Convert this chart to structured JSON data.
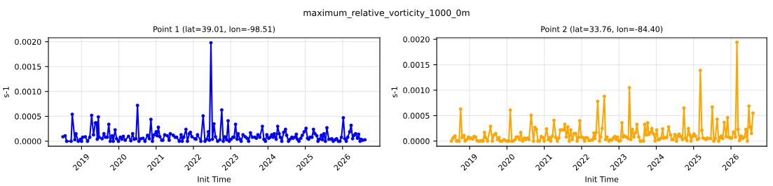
{
  "chart_data": [
    {
      "type": "line",
      "title": "Point 1 (lat=39.01, lon=-98.51)",
      "xlabel": "Init Time",
      "ylabel": "s-1",
      "grid": true,
      "marker": "circle",
      "line_style": "solid",
      "xlim": [
        2018.11,
        2027.0
      ],
      "xticks": [
        2019,
        2020,
        2021,
        2022,
        2023,
        2024,
        2025,
        2026
      ],
      "ylim": [
        -0.0001,
        0.00208
      ],
      "yticks": [
        {
          "value": 0,
          "label": "0.0000"
        },
        {
          "value": 0.0005,
          "label": "0.0005"
        },
        {
          "value": 0.001,
          "label": "0.0010"
        },
        {
          "value": 0.0015,
          "label": "0.0015"
        },
        {
          "value": 0.002,
          "label": "0.0020"
        }
      ],
      "series": [
        {
          "color": "#0000ff",
          "x": [
            2018.5,
            2018.56,
            2018.6,
            2018.72,
            2018.75,
            2018.82,
            2018.85,
            2018.91,
            2018.97,
            2019.0,
            2019.03,
            2019.1,
            2019.16,
            2019.22,
            2019.27,
            2019.32,
            2019.37,
            2019.4,
            2019.42,
            2019.45,
            2019.47,
            2019.55,
            2019.6,
            2019.64,
            2019.69,
            2019.73,
            2019.77,
            2019.82,
            2019.85,
            2019.9,
            2019.94,
            2019.99,
            2020.04,
            2020.08,
            2020.12,
            2020.17,
            2020.26,
            2020.32,
            2020.37,
            2020.41,
            2020.46,
            2020.5,
            2020.54,
            2020.59,
            2020.65,
            2020.7,
            2020.77,
            2020.82,
            2020.86,
            2020.9,
            2020.95,
            2021.0,
            2021.03,
            2021.06,
            2021.1,
            2021.15,
            2021.18,
            2021.23,
            2021.3,
            2021.35,
            2021.38,
            2021.46,
            2021.51,
            2021.55,
            2021.62,
            2021.67,
            2021.7,
            2021.74,
            2021.8,
            2021.84,
            2021.89,
            2021.92,
            2021.96,
            2022.04,
            2022.07,
            2022.11,
            2022.2,
            2022.26,
            2022.31,
            2022.36,
            2022.4,
            2022.43,
            2022.47,
            2022.51,
            2022.55,
            2022.59,
            2022.65,
            2022.71,
            2022.76,
            2022.8,
            2022.84,
            2022.89,
            2022.93,
            2022.96,
            2023.01,
            2023.06,
            2023.09,
            2023.13,
            2023.17,
            2023.2,
            2023.25,
            2023.28,
            2023.33,
            2023.39,
            2023.44,
            2023.48,
            2023.53,
            2023.58,
            2023.65,
            2023.69,
            2023.73,
            2023.78,
            2023.85,
            2023.89,
            2023.93,
            2023.97,
            2024.02,
            2024.06,
            2024.1,
            2024.14,
            2024.17,
            2024.22,
            2024.26,
            2024.3,
            2024.33,
            2024.37,
            2024.42,
            2024.47,
            2024.5,
            2024.55,
            2024.59,
            2024.64,
            2024.67,
            2024.72,
            2024.76,
            2024.79,
            2024.83,
            2024.88,
            2024.92,
            2024.97,
            2025.02,
            2025.06,
            2025.09,
            2025.13,
            2025.18,
            2025.22,
            2025.26,
            2025.31,
            2025.34,
            2025.38,
            2025.43,
            2025.46,
            2025.5,
            2025.54,
            2025.58,
            2025.63,
            2025.67,
            2025.71,
            2025.75,
            2025.8,
            2025.84,
            2025.89,
            2025.93,
            2025.97,
            2026.02,
            2026.06,
            2026.1,
            2026.14,
            2026.19,
            2026.23,
            2026.27,
            2026.31,
            2026.35,
            2026.4,
            2026.43,
            2026.47,
            2026.5,
            2026.54,
            2026.6
          ],
          "values": [
            9e-05,
            0.00011,
            0,
            0,
            0.00054,
            3e-05,
            0.00015,
            0,
            4e-05,
            0,
            8e-05,
            9e-05,
            0,
            8e-05,
            0.00052,
            0.00013,
            0.00037,
            0.00037,
            4e-05,
            0.00049,
            8e-05,
            5e-05,
            0.00015,
            8e-05,
            8e-05,
            0.00034,
            0,
            0.00011,
            0,
            0.00023,
            5e-05,
            0,
            8e-05,
            4e-05,
            0.0001,
            2e-05,
            0.0001,
            1e-05,
            0.00015,
            4e-05,
            5e-05,
            0.00072,
            0,
            5e-05,
            6e-05,
            0,
            0.00012,
            5e-05,
            0.00044,
            0,
            0.00013,
            0.00019,
            0.00011,
            0.00028,
            9e-05,
            2e-05,
            2e-05,
            0.00013,
            0.00011,
            2e-05,
            0.00015,
            0.00012,
            8e-05,
            8e-05,
            0,
            0.00013,
            0,
            8e-05,
            0.00024,
            0,
            0.00015,
            0.00018,
            9e-05,
            5e-05,
            4e-05,
            0.00013,
            0,
            0.00051,
            0,
            4e-05,
            0.00019,
            2e-05,
            0.00198,
            4e-05,
            0.00035,
            9e-05,
            0,
            3e-05,
            0.00063,
            0,
            9e-05,
            3e-05,
            0.00041,
            0,
            4e-05,
            8e-05,
            8e-05,
            0.00034,
            4e-05,
            0.00015,
            4e-05,
            0,
            0.00013,
            9e-05,
            6e-05,
            0,
            0.00017,
            8e-05,
            8e-05,
            6e-05,
            0.00013,
            8e-05,
            0.0003,
            4e-05,
            0,
            0.00013,
            6e-05,
            8e-05,
            0.00013,
            8e-05,
            0.00015,
            4e-05,
            0.0003,
            0.00015,
            8e-05,
            0,
            0.00018,
            0.00024,
            0.00012,
            0,
            4e-05,
            8e-05,
            6e-05,
            8e-05,
            0.00014,
            4e-05,
            0,
            6e-05,
            0.00012,
            0.00019,
            0.00026,
            6e-05,
            4e-05,
            8e-05,
            8e-05,
            0.00024,
            0.00015,
            0.00011,
            0,
            4e-05,
            0.00012,
            3e-05,
            0.00015,
            0,
            0.00027,
            4e-05,
            4e-05,
            5e-05,
            0,
            3e-05,
            5e-05,
            0,
            0,
            8e-05,
            0.00047,
            5e-05,
            0,
            8e-05,
            0.00019,
            0.00032,
            5e-05,
            0.00012,
            0.00015,
            6e-05,
            0.00014,
            0,
            4e-05,
            2e-05,
            3e-05
          ]
        }
      ]
    },
    {
      "type": "line",
      "title": "Point 2 (lat=33.76, lon=-84.40)",
      "xlabel": "Init Time",
      "ylabel": "s-1",
      "grid": true,
      "marker": "circle",
      "line_style": "solid",
      "xlim": [
        2018.12,
        2026.96
      ],
      "xticks": [
        2019,
        2020,
        2021,
        2022,
        2023,
        2024,
        2025,
        2026
      ],
      "ylim": [
        -0.0001,
        0.00203
      ],
      "yticks": [
        {
          "value": 0,
          "label": "0.0000"
        },
        {
          "value": 0.0005,
          "label": "0.0005"
        },
        {
          "value": 0.001,
          "label": "0.0010"
        },
        {
          "value": 0.0015,
          "label": "0.0015"
        },
        {
          "value": 0.002,
          "label": "0.0020"
        }
      ],
      "series": [
        {
          "color": "#ffa500",
          "x": [
            2018.51,
            2018.55,
            2018.58,
            2018.61,
            2018.65,
            2018.68,
            2018.72,
            2018.76,
            2018.8,
            2018.85,
            2018.88,
            2018.92,
            2018.97,
            2019.0,
            2019.04,
            2019.08,
            2019.12,
            2019.16,
            2019.2,
            2019.23,
            2019.28,
            2019.32,
            2019.36,
            2019.4,
            2019.43,
            2019.48,
            2019.56,
            2019.61,
            2019.65,
            2019.7,
            2019.75,
            2019.79,
            2019.82,
            2019.87,
            2019.92,
            2019.96,
            2020.01,
            2020.05,
            2020.09,
            2020.13,
            2020.17,
            2020.22,
            2020.25,
            2020.29,
            2020.34,
            2020.37,
            2020.42,
            2020.47,
            2020.5,
            2020.55,
            2020.59,
            2020.65,
            2020.71,
            2020.75,
            2020.79,
            2020.83,
            2020.87,
            2020.92,
            2020.96,
            2021.0,
            2021.06,
            2021.11,
            2021.14,
            2021.17,
            2021.22,
            2021.26,
            2021.31,
            2021.35,
            2021.39,
            2021.43,
            2021.47,
            2021.52,
            2021.55,
            2021.59,
            2021.63,
            2021.67,
            2021.71,
            2021.75,
            2021.8,
            2021.84,
            2021.88,
            2021.91,
            2021.95,
            2021.99,
            2022.04,
            2022.08,
            2022.12,
            2022.16,
            2022.2,
            2022.25,
            2022.29,
            2022.33,
            2022.36,
            2022.39,
            2022.43,
            2022.48,
            2022.51,
            2022.55,
            2022.61,
            2022.64,
            2022.68,
            2022.73,
            2022.77,
            2022.81,
            2022.85,
            2022.89,
            2022.93,
            2022.96,
            2023.0,
            2023.04,
            2023.08,
            2023.11,
            2023.15,
            2023.2,
            2023.25,
            2023.28,
            2023.32,
            2023.36,
            2023.4,
            2023.45,
            2023.48,
            2023.53,
            2023.57,
            2023.61,
            2023.66,
            2023.69,
            2023.73,
            2023.77,
            2023.8,
            2023.85,
            2023.88,
            2023.93,
            2023.97,
            2024.01,
            2024.05,
            2024.08,
            2024.13,
            2024.17,
            2024.2,
            2024.24,
            2024.28,
            2024.33,
            2024.38,
            2024.42,
            2024.45,
            2024.5,
            2024.54,
            2024.58,
            2024.61,
            2024.65,
            2024.7,
            2024.74,
            2024.78,
            2024.82,
            2024.86,
            2024.9,
            2024.93,
            2024.97,
            2025.01,
            2025.05,
            2025.1,
            2025.14,
            2025.18,
            2025.22,
            2025.25,
            2025.29,
            2025.33,
            2025.37,
            2025.4,
            2025.46,
            2025.5,
            2025.54,
            2025.58,
            2025.63,
            2025.67,
            2025.71,
            2025.74,
            2025.78,
            2025.82,
            2025.87,
            2025.91,
            2025.94,
            2025.98,
            2026.02,
            2026.07,
            2026.12,
            2026.16,
            2026.19,
            2026.23,
            2026.27,
            2026.31,
            2026.36,
            2026.4,
            2026.44,
            2026.48,
            2026.51,
            2026.55,
            2026.59
          ],
          "values": [
            0,
            5e-05,
            8e-05,
            0.0001,
            0,
            1e-05,
            0,
            0.00063,
            7e-05,
            0.00011,
            0,
            3e-05,
            8e-05,
            5e-05,
            6e-05,
            4e-05,
            9e-05,
            8e-05,
            1e-05,
            0,
            0,
            1e-05,
            0,
            0.00017,
            7e-05,
            0,
            0.00029,
            0,
            0.00012,
            0.00015,
            3e-05,
            7e-05,
            0,
            0,
            3e-05,
            1e-05,
            0,
            0,
            0.00061,
            0,
            0,
            3e-05,
            8e-05,
            8e-05,
            3e-05,
            0.00017,
            0,
            6e-05,
            3e-05,
            6e-05,
            3e-05,
            0.00051,
            0,
            0.00027,
            0.00023,
            0,
            0,
            9e-05,
            7e-05,
            0,
            0.00024,
            3e-05,
            7e-05,
            0,
            0.0001,
            0.00041,
            7e-05,
            0,
            6e-05,
            0.00022,
            0.00022,
            0.00022,
            0.00033,
            8e-05,
            0.00028,
            0,
            0.00022,
            3e-05,
            0.00015,
            0.00015,
            0,
            7e-05,
            0.0004,
            8e-05,
            7e-05,
            0,
            7e-05,
            6e-05,
            1e-05,
            2e-05,
            2e-05,
            0.00016,
            5e-05,
            0.00017,
            0.00078,
            0,
            8e-05,
            0.00025,
            0.00088,
            3e-05,
            8e-05,
            0,
            3e-05,
            2e-05,
            6e-05,
            9e-05,
            3e-05,
            8e-05,
            0,
            1e-05,
            0.00036,
            8e-05,
            0.0001,
            8e-05,
            5e-05,
            0.00105,
            3e-05,
            0.00023,
            8e-05,
            0.00017,
            0.00033,
            8e-05,
            0,
            0,
            0,
            0.00033,
            0.00012,
            0.00036,
            0.00013,
            0.00017,
            0.00025,
            0.00014,
            0,
            0.00022,
            3e-05,
            3e-05,
            6e-05,
            0.00024,
            6e-05,
            7e-05,
            7e-05,
            0.00028,
            0.00012,
            3e-05,
            3e-05,
            0.00013,
            0,
            0.0001,
            0.00014,
            9e-05,
            3e-05,
            0.00065,
            6e-05,
            1e-05,
            0.00025,
            0.00012,
            0,
            9e-05,
            0.00014,
            0.0001,
            3e-05,
            5e-05,
            0.00139,
            0.00021,
            6e-05,
            5e-05,
            3e-05,
            6e-05,
            5e-05,
            5e-05,
            0.00067,
            0,
            5e-05,
            0.00043,
            0,
            7e-05,
            0.0001,
            5e-05,
            0.00037,
            9e-05,
            0.00046,
            8e-05,
            6e-05,
            6e-05,
            0.00018,
            8e-05,
            0.00194,
            0.00023,
            1e-05,
            0.0001,
            5e-05,
            8e-05,
            0.00023,
            0,
            0.00069,
            0.00028,
            0.00015,
            0.00055
          ]
        }
      ]
    },
    {
      "type": "other",
      "title": "maximum_relative_vorticity_1000_0m"
    }
  ]
}
